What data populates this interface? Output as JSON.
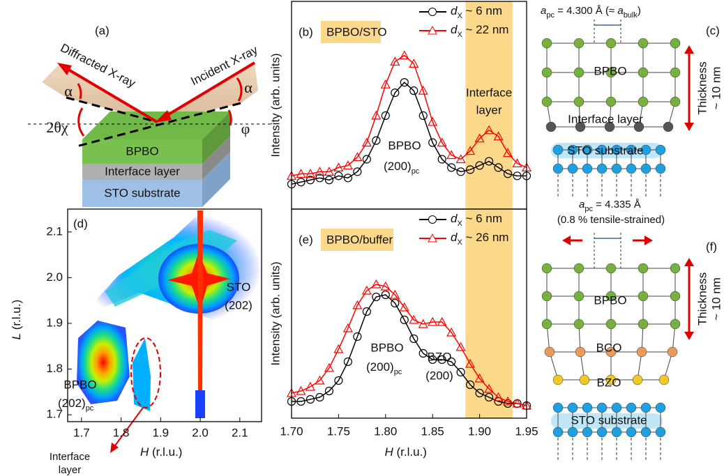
{
  "panel_labels": [
    "(a)",
    "(b)",
    "(c)",
    "(d)",
    "(e)",
    "(f)"
  ],
  "diagram_a": {
    "beams": [
      "Diffracted X-ray",
      "Incident X-ray"
    ],
    "angles": [
      "α",
      "α",
      "2θχ",
      "φ"
    ],
    "layers": [
      "BPBO",
      "Interface layer",
      "STO substrate"
    ]
  },
  "chart_data": [
    {
      "type": "line",
      "tag": "BPBO/STO",
      "y_label": "Intensity (arb. units)",
      "xlim": [
        1.7,
        1.95
      ],
      "ylim": [
        0,
        100
      ],
      "x": [
        1.7,
        1.71,
        1.72,
        1.73,
        1.74,
        1.75,
        1.76,
        1.77,
        1.78,
        1.79,
        1.8,
        1.81,
        1.82,
        1.83,
        1.84,
        1.85,
        1.86,
        1.87,
        1.88,
        1.89,
        1.9,
        1.91,
        1.92,
        1.93,
        1.94,
        1.95
      ],
      "series": [
        {
          "name": "dX ~ 6 nm",
          "color": "#000000",
          "marker": "circle",
          "values": [
            12,
            13,
            14,
            15,
            14,
            16,
            15,
            18,
            24,
            33,
            45,
            56,
            61,
            57,
            45,
            32,
            24,
            20,
            18,
            19,
            21,
            23,
            20,
            17,
            16,
            16
          ]
        },
        {
          "name": "dX ~ 22 nm",
          "color": "#ff0000",
          "marker": "triangle",
          "values": [
            16,
            17,
            17,
            18,
            18,
            20,
            21,
            25,
            32,
            45,
            60,
            71,
            74,
            70,
            57,
            42,
            32,
            26,
            24,
            28,
            34,
            38,
            35,
            27,
            22,
            20
          ]
        }
      ],
      "annotations": [
        "BPBO",
        [
          "(200)",
          "pc"
        ]
      ],
      "highlight": {
        "x_range": [
          1.885,
          1.935
        ],
        "color": "#fbd88a",
        "label": [
          "Interface",
          "layer"
        ]
      }
    },
    {
      "type": "line",
      "tag": "BPBO/buffer",
      "y_label": "Intensity (arb. units)",
      "x_label": [
        "H",
        " (r.l.u.)"
      ],
      "xlim": [
        1.7,
        1.95
      ],
      "ylim": [
        0,
        100
      ],
      "xticks": [
        {
          "value": 1.7,
          "label": "1.70"
        },
        1.75,
        {
          "value": 1.8,
          "label": "1.80"
        },
        1.85,
        {
          "value": 1.9,
          "label": "1.90"
        },
        1.95
      ],
      "x": [
        1.7,
        1.71,
        1.72,
        1.73,
        1.74,
        1.75,
        1.76,
        1.77,
        1.78,
        1.79,
        1.8,
        1.81,
        1.82,
        1.83,
        1.84,
        1.85,
        1.86,
        1.87,
        1.88,
        1.89,
        1.9,
        1.91,
        1.92,
        1.93,
        1.94,
        1.95
      ],
      "series": [
        {
          "name": "dX ~ 6 nm",
          "color": "#000000",
          "marker": "circle",
          "values": [
            8,
            8,
            9,
            10,
            13,
            18,
            27,
            39,
            51,
            58,
            59,
            55,
            47,
            38,
            31,
            28,
            28,
            27,
            22,
            16,
            12,
            10,
            8,
            7,
            7,
            6
          ]
        },
        {
          "name": "dX ~ 26 nm",
          "color": "#ff0000",
          "marker": "triangle",
          "values": [
            12,
            13,
            15,
            18,
            24,
            33,
            43,
            54,
            61,
            64,
            63,
            59,
            53,
            47,
            45,
            46,
            46,
            41,
            34,
            26,
            19,
            14,
            10,
            8,
            7,
            6
          ]
        }
      ],
      "annotations": [
        "BPBO",
        [
          "(200)",
          "pc"
        ],
        "BZO",
        "(200)"
      ],
      "highlight": {
        "x_range": [
          1.885,
          1.935
        ],
        "color": "#fbd88a"
      }
    },
    {
      "type": "heatmap",
      "xlim": [
        1.665,
        2.155
      ],
      "ylim": [
        1.685,
        2.15
      ],
      "xticks": [
        1.7,
        1.8,
        1.9,
        {
          "value": 2,
          "label": "2.0"
        },
        2.1
      ],
      "yticks": [
        1.7,
        1.8,
        1.9,
        {
          "value": 2,
          "label": "2.0"
        },
        2.1
      ],
      "x_label": [
        "H",
        " (r.l.u.)"
      ],
      "y_label": [
        "L",
        " (r.l.u.)"
      ],
      "annotations": {
        "substrate": [
          "STO",
          "(202)"
        ],
        "film": [
          "BPBO",
          [
            "(202)",
            "pc"
          ]
        ],
        "interface": [
          "Interface",
          "layer"
        ]
      }
    }
  ],
  "diagram_c": {
    "lattice_parameter": [
      "a",
      "pc",
      " = 4.300 Å (≈ ",
      "a",
      "bulk",
      ")"
    ],
    "thickness": [
      "Thickness",
      "~ 10 nm"
    ],
    "layers": [
      "BPBO",
      "Interface layer",
      "STO substrate"
    ]
  },
  "diagram_f": {
    "lattice_parameter": [
      "a",
      "pc",
      " = 4.335 Å"
    ],
    "strain": "(0.8 % tensile-strained)",
    "thickness": [
      "Thickness",
      "~ 10 nm"
    ],
    "layers": [
      "BPBO",
      "BCO",
      "BZO",
      "STO substrate"
    ]
  }
}
